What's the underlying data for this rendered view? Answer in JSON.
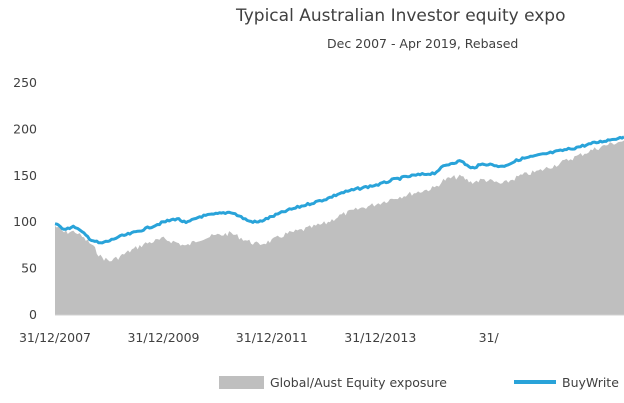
{
  "chart_data": {
    "type": "area",
    "title": "Typical Australian Investor equity expo",
    "subtitle": "Dec 2007 - Apr 2019, Rebased",
    "xlabel": "",
    "ylabel": "",
    "ylim": [
      0,
      250
    ],
    "yticks": [
      0,
      50,
      100,
      150,
      200,
      250
    ],
    "xlim": [
      "2007-12-31",
      "2018-06-30"
    ],
    "xticks": [
      "31/12/2007",
      "31/12/2009",
      "31/12/2011",
      "31/12/2013",
      "31/"
    ],
    "xtick_dates": [
      "2007-12-31",
      "2009-12-31",
      "2011-12-31",
      "2013-12-31",
      "2015-12-31"
    ],
    "grid": false,
    "legend_position": "bottom",
    "series": [
      {
        "name": "Global/Aust Equity exposure",
        "type": "area",
        "color": "#bfbfbf",
        "x": [
          "2007-12-31",
          "2008-03-01",
          "2008-05-15",
          "2008-07-01",
          "2008-09-01",
          "2008-11-01",
          "2009-01-01",
          "2009-03-01",
          "2009-06-01",
          "2009-09-01",
          "2009-12-31",
          "2010-04-01",
          "2010-06-01",
          "2010-09-01",
          "2010-12-31",
          "2011-04-01",
          "2011-08-01",
          "2011-10-01",
          "2011-12-31",
          "2012-04-01",
          "2012-08-01",
          "2012-12-31",
          "2013-04-01",
          "2013-08-01",
          "2013-12-31",
          "2014-04-01",
          "2014-08-01",
          "2014-12-31",
          "2015-03-01",
          "2015-05-01",
          "2015-07-01",
          "2015-09-01",
          "2015-12-01",
          "2016-04-01",
          "2016-08-01",
          "2016-12-01",
          "2017-04-01",
          "2017-08-01",
          "2017-12-01",
          "2018-03-01",
          "2018-06-30"
        ],
        "values": [
          96,
          89,
          90,
          84,
          76,
          63,
          58,
          62,
          70,
          77,
          82,
          78,
          74,
          82,
          86,
          88,
          79,
          76,
          80,
          87,
          92,
          99,
          107,
          114,
          121,
          126,
          131,
          137,
          145,
          148,
          149,
          143,
          146,
          141,
          150,
          155,
          162,
          170,
          178,
          183,
          188
        ]
      },
      {
        "name": "BuyWrite",
        "type": "line",
        "color": "#29a3d9",
        "x": [
          "2007-12-31",
          "2008-03-01",
          "2008-05-15",
          "2008-07-01",
          "2008-09-01",
          "2008-11-01",
          "2009-01-01",
          "2009-03-01",
          "2009-06-01",
          "2009-09-01",
          "2009-12-31",
          "2010-04-01",
          "2010-06-01",
          "2010-09-01",
          "2010-12-31",
          "2011-04-01",
          "2011-08-01",
          "2011-10-01",
          "2011-12-31",
          "2012-04-01",
          "2012-08-01",
          "2012-12-31",
          "2013-04-01",
          "2013-08-01",
          "2013-12-31",
          "2014-04-01",
          "2014-08-01",
          "2014-12-31",
          "2015-03-01",
          "2015-05-01",
          "2015-07-01",
          "2015-09-01",
          "2015-12-01",
          "2016-04-01",
          "2016-08-01",
          "2016-12-01",
          "2017-04-01",
          "2017-08-01",
          "2017-12-01",
          "2018-03-01",
          "2018-06-30"
        ],
        "values": [
          98,
          93,
          95,
          89,
          81,
          77,
          80,
          84,
          88,
          93,
          100,
          104,
          99,
          106,
          109,
          111,
          101,
          100,
          106,
          112,
          118,
          125,
          131,
          136,
          141,
          146,
          150,
          153,
          160,
          164,
          166,
          158,
          163,
          160,
          168,
          172,
          176,
          180,
          185,
          188,
          192
        ]
      }
    ]
  }
}
